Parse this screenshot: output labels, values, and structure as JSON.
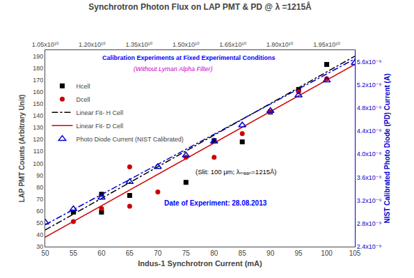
{
  "chart_data": {
    "type": "scatter",
    "title": "Synchrotron Photon Flux on LAP PMT & PD @ λ =1215Å",
    "xlabel": "Indus-1 Synchrotron Current (mA)",
    "ylabel": "LAP PMT Counts (Arbitrary Unit)",
    "y2label": "NIST Calibrated Photo Diode (PD) Current (A)",
    "annotations": [
      {
        "text": "Calibration Experiments at Fixed Experimental Conditions",
        "color": "blue"
      },
      {
        "text": "(Without Lyman Alpha Filter)",
        "color": "#cc00cc"
      },
      {
        "text": "(Slit: 100 μm; λₘₑₐₙ=1215Å)",
        "color": "black"
      },
      {
        "text": "Date of Experiment: 28.08.2013",
        "color": "blue"
      }
    ],
    "xlim": [
      50,
      105
    ],
    "xticks": [
      50,
      55,
      60,
      65,
      70,
      75,
      80,
      85,
      90,
      95,
      100,
      105
    ],
    "x2lim": [
      50,
      105
    ],
    "x2ticks": [
      {
        "value": 50,
        "label": "1.05x10¹⁰"
      },
      {
        "value": 58.33,
        "label": "1.20x10¹⁰"
      },
      {
        "value": 66.67,
        "label": "1.35x10¹⁰"
      },
      {
        "value": 75,
        "label": "1.50x10¹⁰"
      },
      {
        "value": 83.33,
        "label": "1.65x10¹⁰"
      },
      {
        "value": 91.67,
        "label": "1.80x10¹⁰"
      },
      {
        "value": 100,
        "label": "1.95x10¹⁰"
      }
    ],
    "ylim": [
      30,
      195
    ],
    "yticks": [
      30,
      40,
      50,
      60,
      70,
      80,
      90,
      100,
      110,
      120,
      130,
      140,
      150,
      160,
      170,
      180,
      190
    ],
    "y2lim": [
      2.4e-09,
      5.8e-09
    ],
    "y2ticks": [
      {
        "value": 2.4e-09,
        "label": "2.4x10⁻⁹"
      },
      {
        "value": 2.8e-09,
        "label": "2.8x10⁻⁹"
      },
      {
        "value": 3.2e-09,
        "label": "3.2x10⁻⁹"
      },
      {
        "value": 3.6e-09,
        "label": "3.6x10⁻⁹"
      },
      {
        "value": 4e-09,
        "label": "4.0x10⁻⁹"
      },
      {
        "value": 4.4e-09,
        "label": "4.4x10⁻⁹"
      },
      {
        "value": 4.8e-09,
        "label": "4.8x10⁻⁹"
      },
      {
        "value": 5.2e-09,
        "label": "5.2x10⁻⁹"
      },
      {
        "value": 5.6e-09,
        "label": "5.6x10⁻⁹"
      }
    ],
    "grid": false,
    "legend": "upper left",
    "series": [
      {
        "name": "Hcell",
        "type": "scatter",
        "marker": "square",
        "color": "#000000",
        "x": [
          55,
          60,
          60,
          65,
          75,
          80,
          85,
          90,
          95,
          100
        ],
        "values": [
          59,
          59,
          74,
          73,
          84,
          119,
          118,
          143,
          162,
          183
        ]
      },
      {
        "name": "Dcell",
        "type": "scatter",
        "marker": "circle",
        "color": "#cc0000",
        "x": [
          55,
          60,
          65,
          65,
          70,
          75,
          80,
          85,
          90,
          95,
          100
        ],
        "values": [
          51,
          62,
          64,
          97,
          76,
          105,
          105,
          125,
          143,
          160,
          171
        ]
      },
      {
        "name": "Linear Fit- H Cell",
        "type": "line",
        "line_style": "dashdot",
        "color": "#000000",
        "x": [
          50,
          105
        ],
        "values": [
          44,
          190
        ]
      },
      {
        "name": "Linear Fit- D Cell",
        "type": "line",
        "line_style": "solid",
        "color": "#cc0000",
        "x": [
          50,
          105
        ],
        "values": [
          38,
          183
        ]
      },
      {
        "name": "Photo Diode Current (NIST Calibrated)",
        "type": "scatter",
        "marker": "triangle-up-open",
        "color": "#0000cc",
        "axis": "y2",
        "x": [
          50,
          55,
          60,
          65,
          70,
          75,
          80,
          85,
          90,
          95,
          100,
          105
        ],
        "values": [
          2.82e-09,
          3.05e-09,
          3.25e-09,
          3.52e-09,
          3.78e-09,
          3.98e-09,
          4.22e-09,
          4.5e-09,
          4.75e-09,
          5.02e-09,
          5.28e-09,
          5.58e-09
        ]
      },
      {
        "type": "line",
        "line_style": "dashdot",
        "color": "#0000cc",
        "axis": "y2",
        "x": [
          50,
          105
        ],
        "values": [
          2.78e-09,
          5.65e-09
        ]
      }
    ]
  }
}
